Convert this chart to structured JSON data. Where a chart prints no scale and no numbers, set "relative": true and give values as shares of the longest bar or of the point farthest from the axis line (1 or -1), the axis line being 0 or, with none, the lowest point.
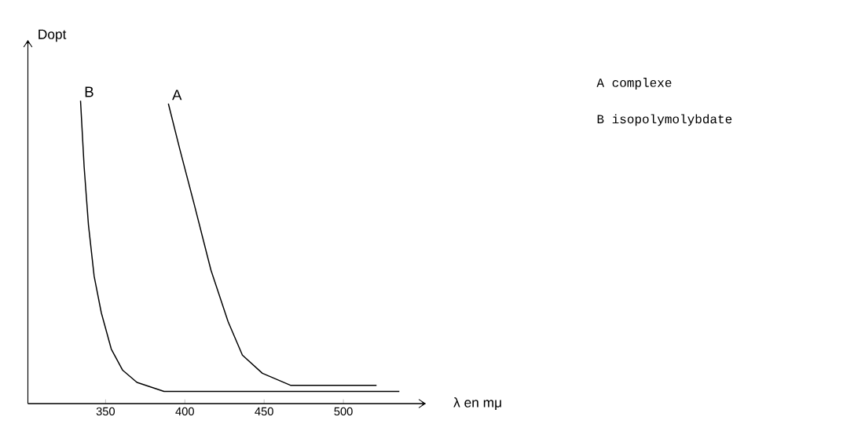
{
  "chart_data": {
    "type": "line",
    "relative": true,
    "xlabel": "λ en mμ",
    "ylabel": "Dopt",
    "xlim": [
      301,
      552
    ],
    "xticks": [
      350,
      400,
      450,
      500
    ],
    "marker": "none",
    "line_style": "solid",
    "grid": false,
    "legend": false,
    "series": [
      {
        "name": "A",
        "color": "#000000",
        "x": [
          389.6,
          396.8,
          405.8,
          416.5,
          427.3,
          436.3,
          448.9,
          466.9,
          520.9
        ],
        "values": [
          0.99,
          0.84,
          0.66,
          0.44,
          0.27,
          0.16,
          0.1,
          0.06,
          0.06
        ]
      },
      {
        "name": "B",
        "color": "#000000",
        "x": [
          334.2,
          336.5,
          339.2,
          342.8,
          347.3,
          353.6,
          360.8,
          369.8,
          386.9,
          400.4,
          535.3
        ],
        "values": [
          1.0,
          0.78,
          0.59,
          0.42,
          0.3,
          0.18,
          0.11,
          0.07,
          0.04,
          0.04,
          0.04
        ]
      }
    ],
    "annotations": [
      "A  complexe",
      "B isopolymolybdate"
    ]
  }
}
